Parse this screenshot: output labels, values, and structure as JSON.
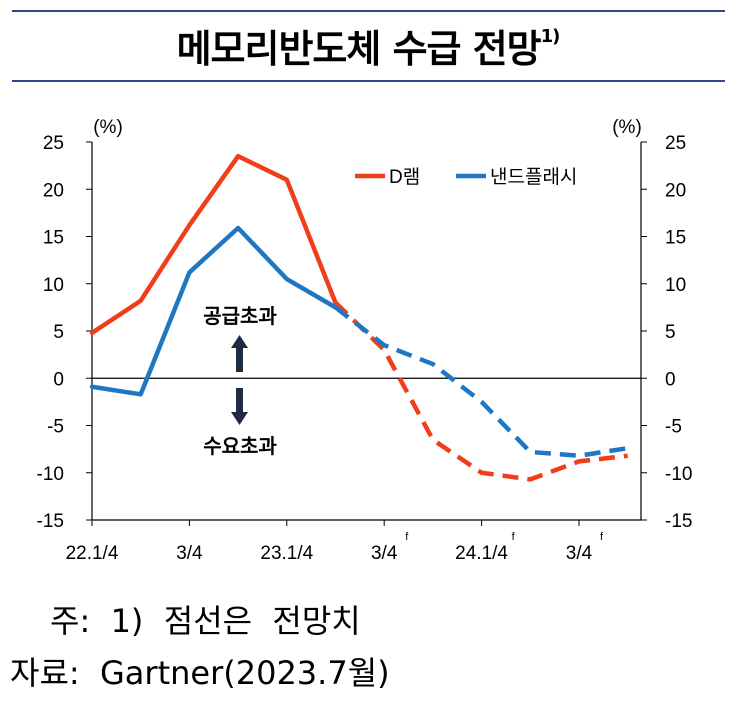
{
  "title": "메모리반도체 수급 전망",
  "title_footnote": "1)",
  "notes": {
    "note1": "주:  1)  점선은  전망치",
    "source": "자료:  Gartner(2023.7월)"
  },
  "colors": {
    "dram": "#f03e1a",
    "nand": "#1f77c4",
    "rule": "#2e4a8a"
  },
  "chart_data": {
    "type": "line",
    "y_unit_left": "(%)",
    "y_unit_right": "(%)",
    "ylim": [
      -15,
      25
    ],
    "yticks": [
      25,
      20,
      15,
      10,
      5,
      0,
      -5,
      -10,
      -15
    ],
    "xticks": [
      {
        "label": "22.1/4",
        "idx": 0,
        "sup": ""
      },
      {
        "label": "3/4",
        "idx": 2,
        "sup": ""
      },
      {
        "label": "23.1/4",
        "idx": 4,
        "sup": ""
      },
      {
        "label": "3/4",
        "idx": 6,
        "sup": "f"
      },
      {
        "label": "24.1/4",
        "idx": 8,
        "sup": "f"
      },
      {
        "label": "3/4",
        "idx": 10,
        "sup": "f"
      }
    ],
    "x_count": 12,
    "series": [
      {
        "name": "D램",
        "color": "#f03e1a",
        "values": [
          4.8,
          8.2,
          16.2,
          23.5,
          21.0,
          8.0,
          3.0,
          -6.5,
          -10.0,
          -10.7,
          -8.8,
          -8.2
        ],
        "forecast_from": 5
      },
      {
        "name": "낸드플래시",
        "color": "#1f77c4",
        "values": [
          -0.9,
          -1.7,
          11.2,
          15.9,
          10.5,
          7.5,
          3.5,
          1.5,
          -2.5,
          -7.8,
          -8.2,
          -7.4
        ],
        "forecast_from": 5
      }
    ],
    "annotations": {
      "supply_excess": "공급초과",
      "demand_excess": "수요초과"
    },
    "legend_position": "top-right",
    "grid": false
  }
}
